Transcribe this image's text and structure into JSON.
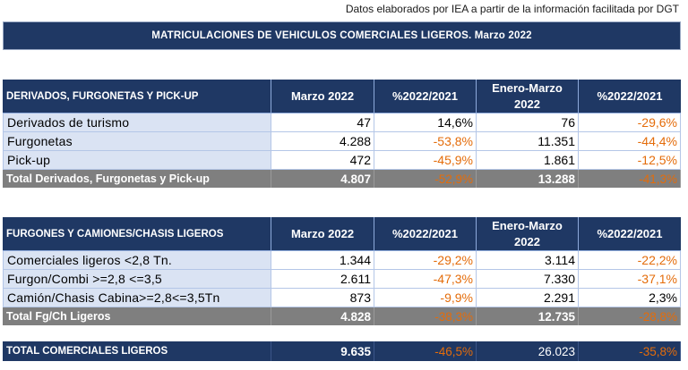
{
  "source_note": "Datos elaborados por IEA a partir de la información facilitada por DGT",
  "title": "MATRICULACIONES DE VEHICULOS COMERCIALES LIGEROS. Marzo 2022",
  "colors": {
    "header_bg": "#1f3864",
    "label_bg": "#dae3f3",
    "total_bg": "#7f7f7f",
    "negative_text": "#e46c0a"
  },
  "tables": [
    {
      "headers": {
        "category": "DERIVADOS, FURGONETAS Y PICK-UP",
        "month": "Marzo 2022",
        "month_change": "%2022/2021",
        "ytd_line1": "Enero-Marzo",
        "ytd_line2": "2022",
        "ytd_change": "%2022/2021"
      },
      "rows": [
        {
          "label": "Derivados de turismo",
          "month": "47",
          "month_change": "14,6%",
          "ytd": "76",
          "ytd_change": "-29,6%"
        },
        {
          "label": "Furgonetas",
          "month": "4.288",
          "month_change": "-53,8%",
          "ytd": "11.351",
          "ytd_change": "-44,4%"
        },
        {
          "label": "Pick-up",
          "month": "472",
          "month_change": "-45,9%",
          "ytd": "1.861",
          "ytd_change": "-12,5%"
        }
      ],
      "total": {
        "label": "Total Derivados, Furgonetas y Pick-up",
        "month": "4.807",
        "month_change": "-52,9%",
        "ytd": "13.288",
        "ytd_change": "-41,3%"
      }
    },
    {
      "headers": {
        "category": "FURGONES Y CAMIONES/CHASIS LIGEROS",
        "month": "Marzo 2022",
        "month_change": "%2022/2021",
        "ytd_line1": "Enero-Marzo",
        "ytd_line2": "2022",
        "ytd_change": "%2022/2021"
      },
      "rows": [
        {
          "label": "Comerciales ligeros <2,8 Tn.",
          "month": "1.344",
          "month_change": "-29,2%",
          "ytd": "3.114",
          "ytd_change": "-22,2%"
        },
        {
          "label": "Furgon/Combi >=2,8 <=3,5",
          "month": "2.611",
          "month_change": "-47,3%",
          "ytd": "7.330",
          "ytd_change": "-37,1%"
        },
        {
          "label": "Camión/Chasis Cabina>=2,8<=3,5Tn",
          "month": "873",
          "month_change": "-9,9%",
          "ytd": "2.291",
          "ytd_change": "2,3%"
        }
      ],
      "total": {
        "label": "Total Fg/Ch Ligeros",
        "month": "4.828",
        "month_change": "-38,3%",
        "ytd": "12.735",
        "ytd_change": "-28,8%"
      }
    }
  ],
  "grand_total": {
    "label": "TOTAL COMERCIALES LIGEROS",
    "month": "9.635",
    "month_change": "-46,5%",
    "ytd": "26.023",
    "ytd_change": "-35,8%"
  }
}
